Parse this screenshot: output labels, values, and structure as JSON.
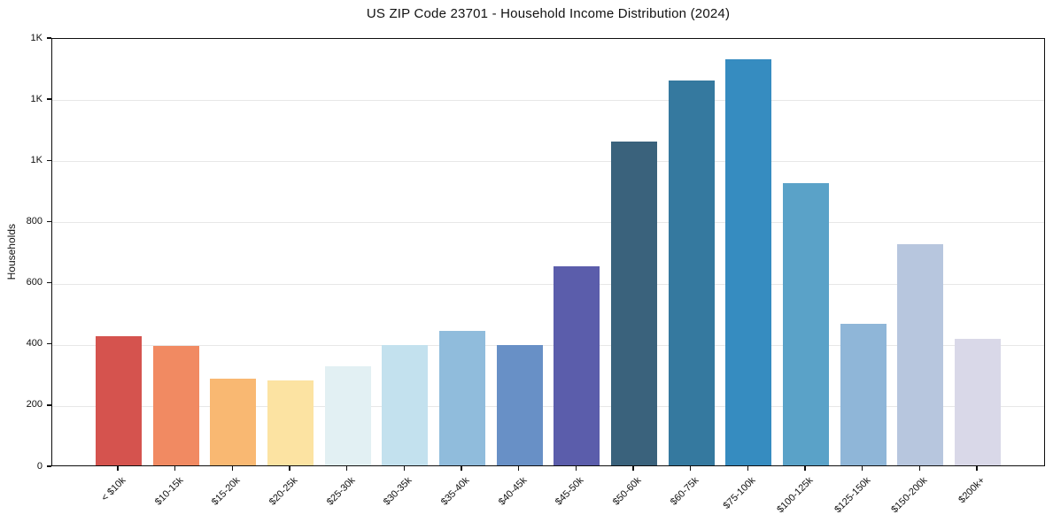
{
  "title": "US ZIP Code 23701 - Household Income Distribution (2024)",
  "chart_data": {
    "type": "bar",
    "title": "US ZIP Code 23701 - Household Income Distribution (2024)",
    "xlabel": "",
    "ylabel": "Households",
    "ylim": [
      0,
      1400
    ],
    "ytick_step": 200,
    "ytick_labels": [
      "0",
      "200",
      "400",
      "600",
      "800",
      "1K",
      "1K",
      "1K"
    ],
    "grid": "horizontal-only",
    "legend": "none",
    "categories": [
      "< $10k",
      "$10-15k",
      "$15-20k",
      "$20-25k",
      "$25-30k",
      "$30-35k",
      "$35-40k",
      "$40-45k",
      "$45-50k",
      "$50-60k",
      "$60-75k",
      "$75-100k",
      "$100-125k",
      "$125-150k",
      "$150-200k",
      "$200k+"
    ],
    "values": [
      421,
      390,
      283,
      277,
      325,
      394,
      441,
      392,
      650,
      1059,
      1259,
      1327,
      923,
      464,
      722,
      413
    ],
    "bar_colors": [
      "#d5534e",
      "#f18a62",
      "#f9b872",
      "#fce3a2",
      "#e2f0f3",
      "#c3e1ee",
      "#90bcdc",
      "#6890c6",
      "#5b5dab",
      "#3a627c",
      "#35799f",
      "#368cc0",
      "#5aa2c8",
      "#8fb6d8",
      "#b7c6de",
      "#d9d8e8"
    ]
  },
  "colors": {
    "background": "#ffffff",
    "spine": "#0d0d0d",
    "grid": "#e7e7e7",
    "text": "#111111"
  }
}
